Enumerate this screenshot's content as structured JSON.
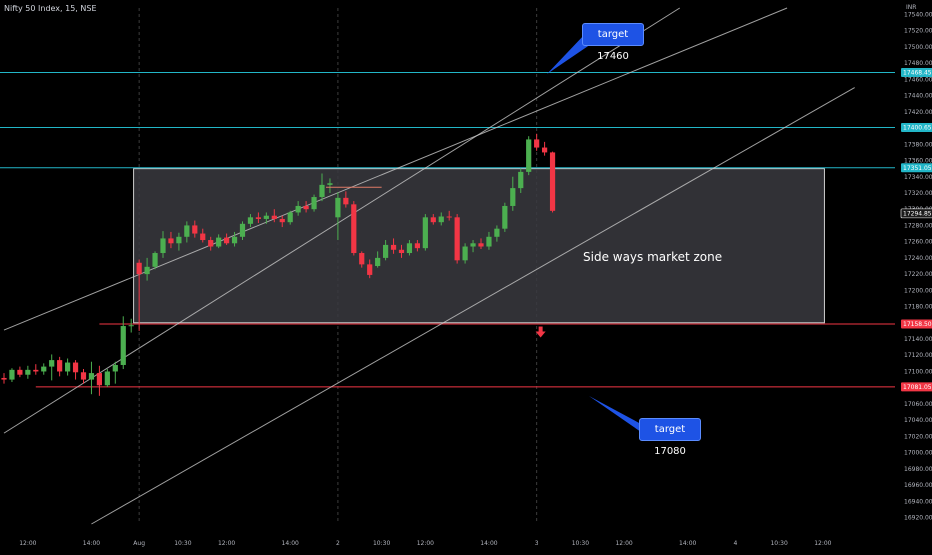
{
  "header": {
    "title": "Nifty 50 Index, 15, NSE",
    "currency": "INR"
  },
  "colors": {
    "background": "#000000",
    "up": "#4caf50",
    "down": "#f23645",
    "cyan_line": "#22b6c7",
    "red_line": "#f23645",
    "channel": "#c8c8c8",
    "zone_fill": "#3a3a3f",
    "callout": "#1e53e5",
    "axis_text": "#b2b5be"
  },
  "annotations": {
    "target_up": "target 17460",
    "target_down": "target 17080",
    "zone_label": "Side ways market zone"
  },
  "chart_data": {
    "type": "candlestick",
    "y_axis": {
      "ylim": [
        16912,
        17548
      ],
      "ticks": [
        17540,
        17520,
        17500,
        17480,
        17460,
        17440,
        17420,
        17400,
        17380,
        17360,
        17340,
        17320,
        17300,
        17280,
        17260,
        17240,
        17220,
        17200,
        17180,
        17160,
        17140,
        17120,
        17100,
        17080,
        17060,
        17040,
        17020,
        17000,
        16980,
        16960,
        16940,
        16920
      ],
      "tick_labels": [
        "17540.00",
        "17520.00",
        "17500.00",
        "17480.00",
        "17460.00",
        "17440.00",
        "17420.00",
        "17400.00",
        "17380.00",
        "17360.00",
        "17340.00",
        "17320.00",
        "17300.00",
        "17280.00",
        "17260.00",
        "17240.00",
        "17220.00",
        "17200.00",
        "17180.00",
        "17160.00",
        "17140.00",
        "17120.00",
        "17100.00",
        "17080.00",
        "17060.00",
        "17040.00",
        "17020.00",
        "17000.00",
        "16980.00",
        "16960.00",
        "16940.00",
        "16920.00"
      ]
    },
    "x_axis": {
      "bar_range": [
        0,
        107
      ],
      "ticks": [
        {
          "bar": 3,
          "label": "12:00"
        },
        {
          "bar": 11,
          "label": "14:00"
        },
        {
          "bar": 17,
          "label": "Aug"
        },
        {
          "bar": 22.5,
          "label": "10:30"
        },
        {
          "bar": 28,
          "label": "12:00"
        },
        {
          "bar": 36,
          "label": "14:00"
        },
        {
          "bar": 42,
          "label": "2"
        },
        {
          "bar": 47.5,
          "label": "10:30"
        },
        {
          "bar": 53,
          "label": "12:00"
        },
        {
          "bar": 61,
          "label": "14:00"
        },
        {
          "bar": 67,
          "label": "3"
        },
        {
          "bar": 72.5,
          "label": "10:30"
        },
        {
          "bar": 78,
          "label": "12:00"
        },
        {
          "bar": 86,
          "label": "14:00"
        },
        {
          "bar": 92,
          "label": "4"
        },
        {
          "bar": 97.5,
          "label": "10:30"
        },
        {
          "bar": 103,
          "label": "12:00"
        }
      ],
      "session_separators": [
        17,
        42,
        67
      ]
    },
    "price_labels": [
      {
        "value": 17468.45,
        "label": "17468.45",
        "color": "#22b6c7"
      },
      {
        "value": 17400.65,
        "label": "17400.65",
        "color": "#22b6c7"
      },
      {
        "value": 17351.05,
        "label": "17351.05",
        "color": "#22b6c7"
      },
      {
        "value": 17294.85,
        "label": "17294.85",
        "color": "#ffffff"
      },
      {
        "value": 17158.5,
        "label": "17158.50",
        "color": "#f23645"
      },
      {
        "value": 17081.05,
        "label": "17081.05",
        "color": "#f23645"
      }
    ],
    "horizontal_levels": [
      {
        "value": 17468.45,
        "color": "#22b6c7",
        "from_bar": 0
      },
      {
        "value": 17400.65,
        "color": "#22b6c7",
        "from_bar": 0
      },
      {
        "value": 17351.05,
        "color": "#22b6c7",
        "from_bar": 0
      },
      {
        "value": 17158.5,
        "color": "#f23645",
        "from_bar": 12
      },
      {
        "value": 17081.05,
        "color": "#f23645",
        "from_bar": 4
      }
    ],
    "zone": {
      "bar_start": 16.3,
      "bar_end": 103.2,
      "top": 17350,
      "bottom": 17160
    },
    "channel_lines": [
      {
        "bar0": 0,
        "price0": 17151,
        "bar1": 98.5,
        "price1": 17548
      },
      {
        "bar0": 0,
        "price0": 17024,
        "bar1": 85,
        "price1": 17548
      },
      {
        "bar0": 11,
        "price0": 16912,
        "bar1": 107,
        "price1": 17450
      }
    ],
    "candles": [
      {
        "o": 17092,
        "h": 17098,
        "l": 17085,
        "c": 17090
      },
      {
        "o": 17090,
        "h": 17104,
        "l": 17087,
        "c": 17102
      },
      {
        "o": 17102,
        "h": 17106,
        "l": 17093,
        "c": 17096
      },
      {
        "o": 17096,
        "h": 17107,
        "l": 17091,
        "c": 17102
      },
      {
        "o": 17102,
        "h": 17109,
        "l": 17096,
        "c": 17100
      },
      {
        "o": 17100,
        "h": 17110,
        "l": 17096,
        "c": 17106
      },
      {
        "o": 17106,
        "h": 17121,
        "l": 17089,
        "c": 17114
      },
      {
        "o": 17114,
        "h": 17118,
        "l": 17094,
        "c": 17100
      },
      {
        "o": 17100,
        "h": 17116,
        "l": 17095,
        "c": 17111
      },
      {
        "o": 17111,
        "h": 17114,
        "l": 17090,
        "c": 17099
      },
      {
        "o": 17099,
        "h": 17103,
        "l": 17085,
        "c": 17090
      },
      {
        "o": 17090,
        "h": 17112,
        "l": 17072,
        "c": 17098
      },
      {
        "o": 17098,
        "h": 17107,
        "l": 17070,
        "c": 17083
      },
      {
        "o": 17083,
        "h": 17103,
        "l": 17081,
        "c": 17100
      },
      {
        "o": 17100,
        "h": 17112,
        "l": 17085,
        "c": 17108
      },
      {
        "o": 17108,
        "h": 17168,
        "l": 17103,
        "c": 17156
      },
      {
        "o": 17156,
        "h": 17165,
        "l": 17148,
        "c": 17157
      },
      {
        "o": 17234,
        "h": 17238,
        "l": 17150,
        "c": 17220
      },
      {
        "o": 17220,
        "h": 17240,
        "l": 17212,
        "c": 17229
      },
      {
        "o": 17229,
        "h": 17248,
        "l": 17226,
        "c": 17246
      },
      {
        "o": 17246,
        "h": 17273,
        "l": 17240,
        "c": 17264
      },
      {
        "o": 17264,
        "h": 17272,
        "l": 17252,
        "c": 17258
      },
      {
        "o": 17258,
        "h": 17271,
        "l": 17249,
        "c": 17266
      },
      {
        "o": 17266,
        "h": 17285,
        "l": 17259,
        "c": 17280
      },
      {
        "o": 17280,
        "h": 17286,
        "l": 17265,
        "c": 17270
      },
      {
        "o": 17270,
        "h": 17276,
        "l": 17259,
        "c": 17262
      },
      {
        "o": 17262,
        "h": 17266,
        "l": 17249,
        "c": 17254
      },
      {
        "o": 17254,
        "h": 17269,
        "l": 17252,
        "c": 17265
      },
      {
        "o": 17265,
        "h": 17270,
        "l": 17256,
        "c": 17258
      },
      {
        "o": 17258,
        "h": 17272,
        "l": 17254,
        "c": 17266
      },
      {
        "o": 17266,
        "h": 17285,
        "l": 17262,
        "c": 17282
      },
      {
        "o": 17282,
        "h": 17294,
        "l": 17278,
        "c": 17290
      },
      {
        "o": 17290,
        "h": 17296,
        "l": 17283,
        "c": 17288
      },
      {
        "o": 17288,
        "h": 17296,
        "l": 17282,
        "c": 17292
      },
      {
        "o": 17292,
        "h": 17300,
        "l": 17284,
        "c": 17288
      },
      {
        "o": 17288,
        "h": 17292,
        "l": 17278,
        "c": 17284
      },
      {
        "o": 17284,
        "h": 17298,
        "l": 17281,
        "c": 17296
      },
      {
        "o": 17296,
        "h": 17310,
        "l": 17292,
        "c": 17304
      },
      {
        "o": 17304,
        "h": 17310,
        "l": 17296,
        "c": 17300
      },
      {
        "o": 17300,
        "h": 17318,
        "l": 17297,
        "c": 17315
      },
      {
        "o": 17315,
        "h": 17344,
        "l": 17310,
        "c": 17330
      },
      {
        "o": 17330,
        "h": 17338,
        "l": 17320,
        "c": 17332
      },
      {
        "o": 17290,
        "h": 17321,
        "l": 17262,
        "c": 17314
      },
      {
        "o": 17314,
        "h": 17322,
        "l": 17302,
        "c": 17306
      },
      {
        "o": 17306,
        "h": 17310,
        "l": 17243,
        "c": 17246
      },
      {
        "o": 17246,
        "h": 17248,
        "l": 17228,
        "c": 17232
      },
      {
        "o": 17232,
        "h": 17238,
        "l": 17215,
        "c": 17219
      },
      {
        "o": 17230,
        "h": 17248,
        "l": 17228,
        "c": 17240
      },
      {
        "o": 17240,
        "h": 17262,
        "l": 17237,
        "c": 17256
      },
      {
        "o": 17256,
        "h": 17264,
        "l": 17245,
        "c": 17250
      },
      {
        "o": 17250,
        "h": 17256,
        "l": 17240,
        "c": 17246
      },
      {
        "o": 17246,
        "h": 17262,
        "l": 17243,
        "c": 17258
      },
      {
        "o": 17258,
        "h": 17262,
        "l": 17248,
        "c": 17252
      },
      {
        "o": 17252,
        "h": 17294,
        "l": 17249,
        "c": 17290
      },
      {
        "o": 17290,
        "h": 17294,
        "l": 17281,
        "c": 17284
      },
      {
        "o": 17284,
        "h": 17296,
        "l": 17280,
        "c": 17291
      },
      {
        "o": 17291,
        "h": 17298,
        "l": 17286,
        "c": 17290
      },
      {
        "o": 17290,
        "h": 17294,
        "l": 17233,
        "c": 17237
      },
      {
        "o": 17237,
        "h": 17258,
        "l": 17233,
        "c": 17254
      },
      {
        "o": 17254,
        "h": 17262,
        "l": 17247,
        "c": 17258
      },
      {
        "o": 17258,
        "h": 17264,
        "l": 17251,
        "c": 17254
      },
      {
        "o": 17254,
        "h": 17272,
        "l": 17250,
        "c": 17266
      },
      {
        "o": 17266,
        "h": 17280,
        "l": 17260,
        "c": 17276
      },
      {
        "o": 17276,
        "h": 17308,
        "l": 17272,
        "c": 17304
      },
      {
        "o": 17304,
        "h": 17340,
        "l": 17298,
        "c": 17326
      },
      {
        "o": 17326,
        "h": 17350,
        "l": 17320,
        "c": 17346
      },
      {
        "o": 17346,
        "h": 17390,
        "l": 17342,
        "c": 17386
      },
      {
        "o": 17386,
        "h": 17393,
        "l": 17372,
        "c": 17376
      },
      {
        "o": 17376,
        "h": 17383,
        "l": 17366,
        "c": 17370
      },
      {
        "o": 17370,
        "h": 17371,
        "l": 17296,
        "c": 17298
      }
    ],
    "arrow": {
      "bar": 67.5,
      "value": 17148
    }
  }
}
